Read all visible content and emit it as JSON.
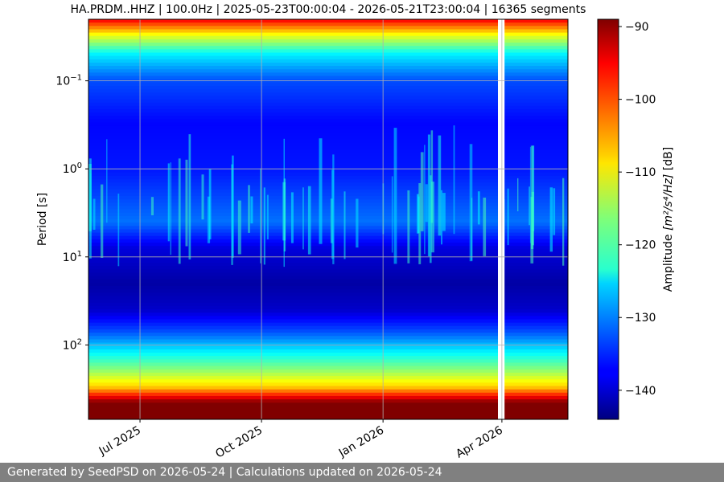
{
  "chart_data": {
    "type": "heatmap",
    "title": "HA.PRDM..HHZ | 100.0Hz | 2025-05-23T00:00:04 - 2026-05-21T23:00:04 | 16365 segments",
    "ylabel": "Period [s]",
    "y_scale": "log",
    "y_inverted": true,
    "y_range": [
      0.02,
      700
    ],
    "y_ticks": [
      {
        "value": 0.1,
        "base": "10",
        "exp": "−1"
      },
      {
        "value": 1,
        "base": "10",
        "exp": "0"
      },
      {
        "value": 10,
        "base": "10",
        "exp": "1"
      },
      {
        "value": 100,
        "base": "10",
        "exp": "2"
      }
    ],
    "x_range": [
      "2025-05-23",
      "2026-05-21"
    ],
    "x_ticks": [
      {
        "date": "2025-07-01",
        "label": "Jul 2025"
      },
      {
        "date": "2025-10-01",
        "label": "Oct 2025"
      },
      {
        "date": "2026-01-01",
        "label": "Jan 2026"
      },
      {
        "date": "2026-04-01",
        "label": "Apr 2026"
      }
    ],
    "data_gap": [
      "2026-03-29",
      "2026-04-03"
    ],
    "grid": true,
    "colorbar": {
      "label": "Amplitude",
      "label_expr": "m²/s⁴/Hz",
      "label_unit": "[dB]",
      "range": [
        -144,
        -89
      ],
      "ticks": [
        -90,
        -100,
        -110,
        -120,
        -130,
        -140
      ],
      "colormap": "jet"
    },
    "spectral_profile": [
      {
        "period": 0.02,
        "db": -95
      },
      {
        "period": 0.03,
        "db": -110
      },
      {
        "period": 0.05,
        "db": -124
      },
      {
        "period": 0.1,
        "db": -133
      },
      {
        "period": 0.3,
        "db": -137
      },
      {
        "period": 1,
        "db": -136
      },
      {
        "period": 4,
        "db": -131
      },
      {
        "period": 8,
        "db": -139
      },
      {
        "period": 20,
        "db": -142
      },
      {
        "period": 40,
        "db": -140
      },
      {
        "period": 70,
        "db": -133
      },
      {
        "period": 100,
        "db": -127
      },
      {
        "period": 180,
        "db": -117
      },
      {
        "period": 300,
        "db": -107
      },
      {
        "period": 450,
        "db": -89
      },
      {
        "period": 700,
        "db": -89
      }
    ]
  },
  "footer": {
    "text": "Generated by SeedPSD on 2026-05-24 | Calculations updated on 2026-05-24"
  }
}
